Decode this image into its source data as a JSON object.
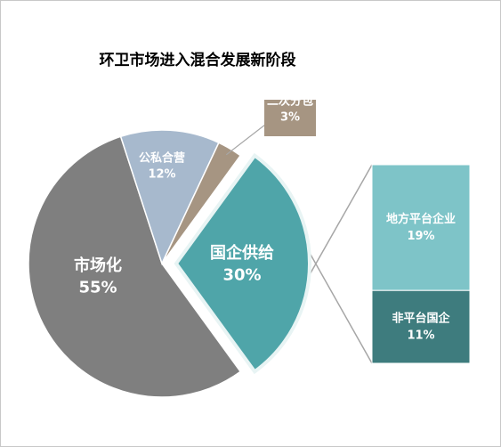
{
  "chart_data": {
    "type": "pie",
    "title": "环卫市场进入混合发展新阶段",
    "categories": [
      "市场化",
      "公私合营",
      "二次分包",
      "国企供给"
    ],
    "values": [
      55,
      12,
      3,
      30
    ],
    "value_labels": [
      "55%",
      "12%",
      "3%",
      "30%"
    ],
    "colors": [
      "#7f7f7f",
      "#a7b9cd",
      "#a69582",
      "#4fa5a9"
    ],
    "breakdown": {
      "categories": [
        "地方平台企业",
        "非平台国企"
      ],
      "values": [
        19,
        11
      ],
      "value_labels": [
        "19%",
        "11%"
      ],
      "colors": [
        "#7ec4c8",
        "#3e7c7e"
      ]
    }
  }
}
